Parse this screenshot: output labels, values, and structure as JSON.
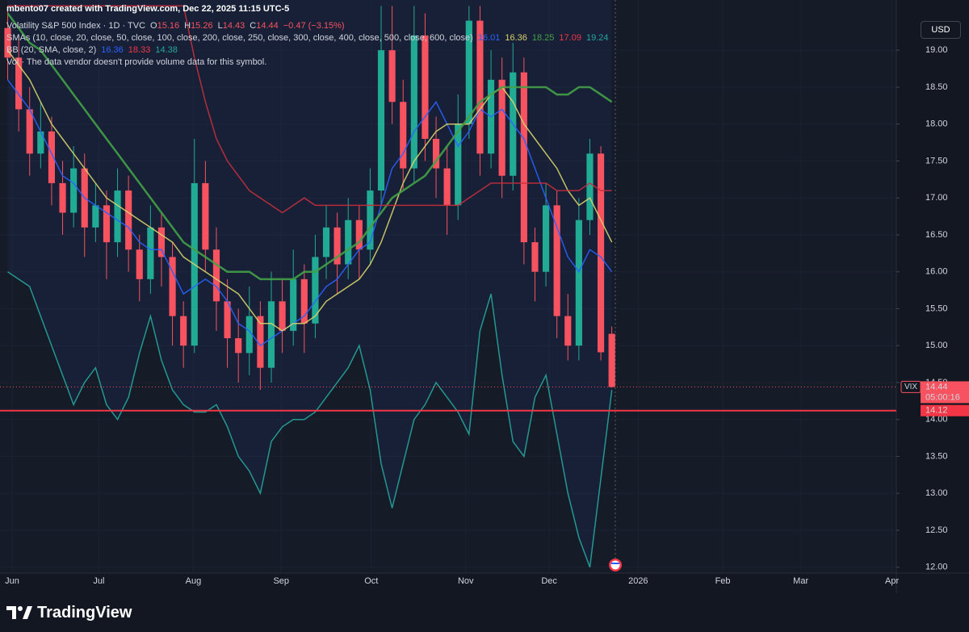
{
  "header": {
    "credit": "mbento07 created with TradingView.com, Dec 22, 2025 11:15 UTC-5",
    "symbol": "Volatility S&P 500 Index · 1D · TVC",
    "o_label": "O",
    "h_label": "H",
    "l_label": "L",
    "c_label": "C",
    "change": "−0.47 (−3.15%)",
    "sma_title": "SMAs (10, close, 20, close, 50, close, 100, close, 200, close, 250, close, 300, close, 400, close, 500, close, 600, close)",
    "sma_values": [
      "16.01",
      "16.36",
      "18.25",
      "17.09",
      "19.24"
    ],
    "bb_title": "BB (20, SMA, close, 2)",
    "bb_values": [
      "16.36",
      "18.33",
      "14.38"
    ],
    "vol": "Vol · The data vendor doesn't provide volume data for this symbol.",
    "currency": "USD"
  },
  "chart_data": {
    "type": "candlestick",
    "up_color": "#22ab94",
    "down_color": "#f7525f",
    "categories": [
      null,
      null,
      null,
      null,
      null,
      null,
      null,
      null,
      null,
      null,
      null,
      null,
      null,
      null,
      null,
      null,
      null,
      null,
      null,
      null,
      null,
      null,
      null,
      null,
      null,
      null,
      null,
      null,
      null,
      null,
      null,
      null,
      null,
      null,
      null,
      null,
      null,
      null,
      null,
      null,
      null,
      null,
      null,
      null,
      null,
      null,
      null,
      null,
      null,
      null,
      null,
      null,
      null,
      null,
      null,
      null
    ],
    "open": [
      19.3,
      18.9,
      18.2,
      17.6,
      17.9,
      17.2,
      16.8,
      17.4,
      16.6,
      16.9,
      16.4,
      17.1,
      16.3,
      15.9,
      16.6,
      16.2,
      15.4,
      15.0,
      17.2,
      16.3,
      15.6,
      15.1,
      14.9,
      15.4,
      14.7,
      15.6,
      15.2,
      15.9,
      15.3,
      16.2,
      16.6,
      16.1,
      16.7,
      16.3,
      17.1,
      19.0,
      18.3,
      17.4,
      19.2,
      17.8,
      17.4,
      16.9,
      18.0,
      19.4,
      17.6,
      18.6,
      17.3,
      18.7,
      16.4,
      16.0,
      16.9,
      15.4,
      15.0,
      16.7,
      17.6,
      15.16
    ],
    "high": [
      19.6,
      19.2,
      18.5,
      18.3,
      18.1,
      17.5,
      17.7,
      17.6,
      17.2,
      17.1,
      17.4,
      17.3,
      16.5,
      16.9,
      16.8,
      16.4,
      15.6,
      17.8,
      17.5,
      16.6,
      15.9,
      15.5,
      15.8,
      15.6,
      16.0,
      15.9,
      16.3,
      16.1,
      16.5,
      16.9,
      16.8,
      17.0,
      16.9,
      17.4,
      19.6,
      19.6,
      18.6,
      19.6,
      19.5,
      18.1,
      17.7,
      18.4,
      19.6,
      19.6,
      19.0,
      18.9,
      19.1,
      18.9,
      16.6,
      17.2,
      17.1,
      15.7,
      17.0,
      17.8,
      17.7,
      15.26
    ],
    "low": [
      18.6,
      17.9,
      17.3,
      17.4,
      16.9,
      16.5,
      16.6,
      16.2,
      16.4,
      15.9,
      16.2,
      16.0,
      15.6,
      15.7,
      15.8,
      15.0,
      14.7,
      14.9,
      16.0,
      15.2,
      14.7,
      14.5,
      14.6,
      14.4,
      14.5,
      14.9,
      15.0,
      14.9,
      15.1,
      15.9,
      15.7,
      15.9,
      15.9,
      16.1,
      16.9,
      18.0,
      17.1,
      17.2,
      17.5,
      17.0,
      16.5,
      16.7,
      17.8,
      17.3,
      17.4,
      17.0,
      17.1,
      16.1,
      15.6,
      15.8,
      15.1,
      14.8,
      14.8,
      16.5,
      14.8,
      14.43
    ],
    "close": [
      18.9,
      18.2,
      17.6,
      17.9,
      17.2,
      16.8,
      17.4,
      16.6,
      16.9,
      16.4,
      17.1,
      16.3,
      15.9,
      16.6,
      16.2,
      15.4,
      15.0,
      17.2,
      16.3,
      15.6,
      15.1,
      14.9,
      15.4,
      14.7,
      15.6,
      15.2,
      15.9,
      15.3,
      16.2,
      16.6,
      16.1,
      16.7,
      16.3,
      17.1,
      19.0,
      18.3,
      17.4,
      19.2,
      17.8,
      17.4,
      16.9,
      18.0,
      19.4,
      17.6,
      18.6,
      17.3,
      18.7,
      16.4,
      16.0,
      16.9,
      15.4,
      15.0,
      16.7,
      17.6,
      14.91,
      14.44
    ],
    "series": [
      {
        "color": "#2962ff",
        "values": [
          18.6,
          18.4,
          18.2,
          17.9,
          17.6,
          17.3,
          17.2,
          17.0,
          16.9,
          16.8,
          16.7,
          16.6,
          16.4,
          16.3,
          16.3,
          16.0,
          15.7,
          15.8,
          15.9,
          15.8,
          15.6,
          15.3,
          15.2,
          15.0,
          15.1,
          15.2,
          15.3,
          15.4,
          15.6,
          15.8,
          15.9,
          16.1,
          16.3,
          16.4,
          16.9,
          17.4,
          17.6,
          17.9,
          18.1,
          18.3,
          18.0,
          17.7,
          17.9,
          18.2,
          18.1,
          18.2,
          18.0,
          17.8,
          17.4,
          17.0,
          16.6,
          16.2,
          16.0,
          16.3,
          16.2,
          16.0
        ]
      },
      {
        "color": "#d8d36a",
        "values": [
          19.0,
          18.8,
          18.6,
          18.3,
          18.0,
          17.8,
          17.6,
          17.4,
          17.2,
          17.0,
          16.9,
          16.8,
          16.7,
          16.6,
          16.5,
          16.4,
          16.2,
          16.1,
          16.0,
          15.9,
          15.8,
          15.7,
          15.5,
          15.3,
          15.3,
          15.2,
          15.3,
          15.3,
          15.4,
          15.6,
          15.7,
          15.8,
          15.9,
          16.1,
          16.4,
          16.8,
          17.2,
          17.5,
          17.7,
          17.9,
          18.0,
          18.0,
          18.0,
          18.2,
          18.4,
          18.5,
          18.3,
          18.0,
          17.8,
          17.6,
          17.4,
          17.1,
          16.9,
          17.0,
          16.7,
          16.4
        ]
      },
      {
        "color": "#43a047",
        "values": [
          19.5,
          19.3,
          19.1,
          19.0,
          18.8,
          18.6,
          18.4,
          18.2,
          18.0,
          17.8,
          17.6,
          17.4,
          17.2,
          17.0,
          16.8,
          16.6,
          16.4,
          16.3,
          16.2,
          16.1,
          16.0,
          16.0,
          16.0,
          15.9,
          15.9,
          15.9,
          15.9,
          16.0,
          16.0,
          16.1,
          16.2,
          16.3,
          16.4,
          16.6,
          16.8,
          17.0,
          17.1,
          17.2,
          17.3,
          17.5,
          17.7,
          17.9,
          18.1,
          18.3,
          18.4,
          18.5,
          18.5,
          18.5,
          18.5,
          18.5,
          18.4,
          18.4,
          18.5,
          18.5,
          18.4,
          18.3
        ]
      },
      {
        "color": "#c62f3c",
        "values": [
          19.6,
          19.6,
          19.6,
          19.6,
          19.6,
          19.6,
          19.6,
          19.6,
          19.6,
          19.6,
          19.6,
          19.6,
          19.6,
          19.6,
          19.6,
          19.6,
          19.6,
          18.9,
          18.3,
          17.8,
          17.5,
          17.3,
          17.1,
          17.0,
          16.9,
          16.8,
          16.9,
          17.0,
          16.9,
          16.9,
          16.9,
          16.9,
          16.9,
          16.9,
          16.9,
          16.9,
          16.9,
          16.9,
          16.9,
          16.9,
          16.9,
          16.9,
          17.0,
          17.1,
          17.2,
          17.2,
          17.2,
          17.2,
          17.2,
          17.2,
          17.1,
          17.1,
          17.1,
          17.2,
          17.1,
          17.1
        ]
      },
      {
        "color": "#26a69a",
        "values": [
          16.0,
          15.9,
          15.8,
          15.4,
          15.0,
          14.6,
          14.2,
          14.5,
          14.7,
          14.2,
          14.0,
          14.3,
          14.9,
          15.4,
          14.8,
          14.4,
          14.2,
          14.1,
          14.1,
          14.2,
          13.9,
          13.5,
          13.3,
          13.0,
          13.7,
          13.9,
          14.0,
          14.0,
          14.1,
          14.3,
          14.5,
          14.7,
          15.0,
          14.4,
          13.4,
          12.8,
          13.4,
          14.0,
          14.2,
          14.5,
          14.3,
          14.1,
          13.8,
          15.2,
          15.7,
          14.6,
          13.7,
          13.5,
          14.3,
          14.6,
          13.8,
          13.0,
          12.4,
          12.0,
          13.2,
          14.4
        ]
      }
    ],
    "xlim": [
      -0.7,
      80.9
    ],
    "xticks": [
      {
        "value": 0.4,
        "label": "Jun"
      },
      {
        "value": 8.3,
        "label": "Jul"
      },
      {
        "value": 16.9,
        "label": "Aug"
      },
      {
        "value": 24.9,
        "label": "Sep"
      },
      {
        "value": 33.1,
        "label": "Oct"
      },
      {
        "value": 41.7,
        "label": "Nov"
      },
      {
        "value": 49.3,
        "label": "Dec"
      },
      {
        "value": 57.4,
        "label": "2026"
      },
      {
        "value": 65.1,
        "label": "Feb"
      },
      {
        "value": 72.2,
        "label": "Mar"
      },
      {
        "value": 80.5,
        "label": "Apr"
      }
    ],
    "ylim": [
      11.92,
      19.68
    ],
    "yticks": [
      {
        "value": 12,
        "label": "12.00"
      },
      {
        "value": 12.5,
        "label": "12.50"
      },
      {
        "value": 13,
        "label": "13.00"
      },
      {
        "value": 13.5,
        "label": "13.50"
      },
      {
        "value": 14,
        "label": "14.00"
      },
      {
        "value": 14.5,
        "label": "14.50"
      },
      {
        "value": 15,
        "label": "15.00"
      },
      {
        "value": 15.5,
        "label": "15.50"
      },
      {
        "value": 16,
        "label": "16.00"
      },
      {
        "value": 16.5,
        "label": "16.50"
      },
      {
        "value": 17,
        "label": "17.00"
      },
      {
        "value": 17.5,
        "label": "17.50"
      },
      {
        "value": 18,
        "label": "18.00"
      },
      {
        "value": 18.5,
        "label": "18.50"
      },
      {
        "value": 19,
        "label": "19.00"
      }
    ],
    "price_tag": {
      "symbol": "VIX",
      "countdown": "05:00:16"
    },
    "level": {
      "value": 14.12,
      "label": "14.12",
      "color": "#f23645"
    }
  },
  "footer": {
    "brand": "TradingView"
  }
}
